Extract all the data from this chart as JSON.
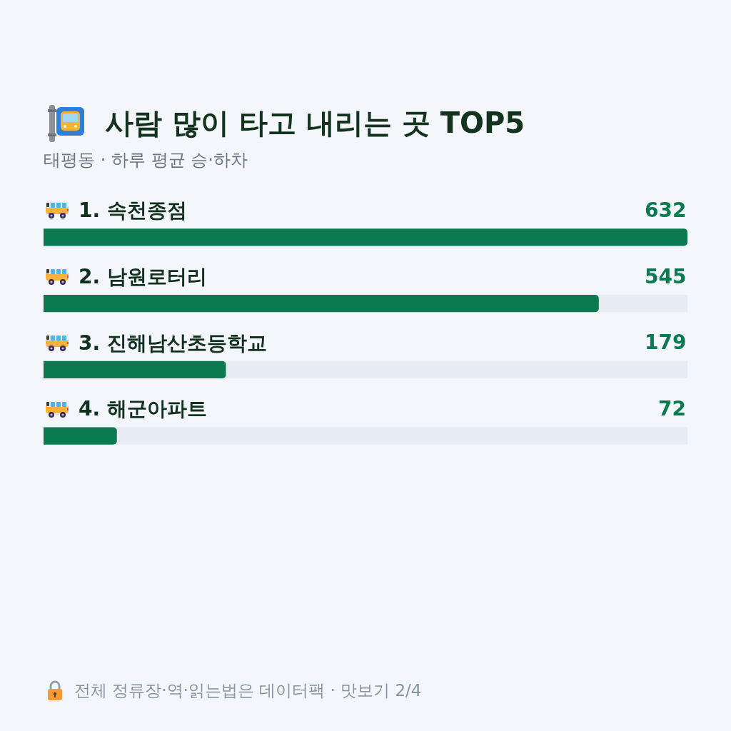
{
  "chart_data": {
    "type": "bar",
    "orientation": "horizontal",
    "title": "사람 많이 타고 내리는 곳 TOP5",
    "subtitle": "태평동 · 하루 평균 승·하차",
    "categories": [
      "1. 속천종점",
      "2. 남원로터리",
      "3. 진해남산초등학교",
      "4. 해군아파트"
    ],
    "values": [
      632,
      545,
      179,
      72
    ],
    "color": "#0b7a50",
    "xlim": [
      0,
      632
    ],
    "data_labels": true,
    "tick_labels": "y",
    "annotations": [
      "전체 정류장·역·읽는법은 데이터팩 · 맛보기 2/4"
    ]
  }
}
